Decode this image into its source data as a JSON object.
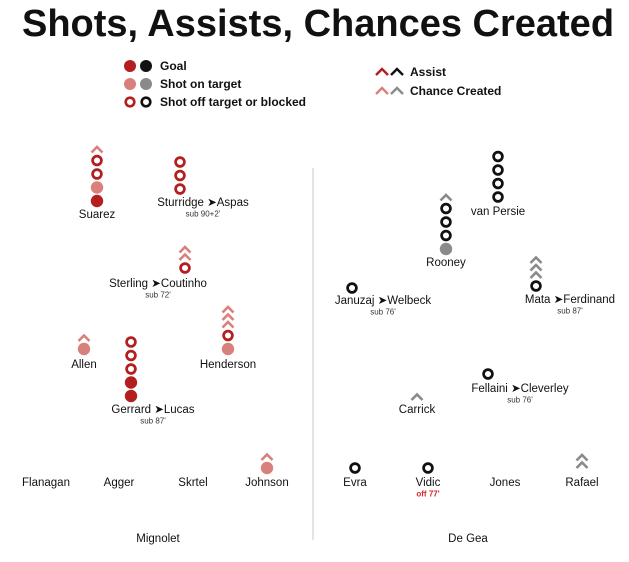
{
  "chart_data": {
    "type": "scatter",
    "title": "Shots, Assists, Chances Created",
    "colors": {
      "home_dark": "#b41e1e",
      "home_light": "#d9807d",
      "away_dark": "#111111",
      "away_light": "#8a8a8a",
      "off_red": "#d92626"
    },
    "legend": {
      "goal": "Goal",
      "on_target": "Shot on target",
      "off_target": "Shot off target or blocked",
      "assist": "Assist",
      "chance": "Chance Created"
    },
    "goalkeepers": {
      "home": "Mignolet",
      "away": "De Gea"
    },
    "teams": [
      {
        "side": "home",
        "players": [
          {
            "key": "suarez",
            "name": "Suarez",
            "sub_in": "",
            "sub_note": "",
            "events": [
              "goal",
              "on_target",
              "off_target",
              "off_target",
              "chance"
            ]
          },
          {
            "key": "sturridge",
            "name": "Sturridge",
            "sub_in": "Aspas",
            "sub_note": "sub 90+2'",
            "events": [
              "off_target",
              "off_target",
              "off_target"
            ]
          },
          {
            "key": "sterling",
            "name": "Sterling",
            "sub_in": "Coutinho",
            "sub_note": "sub 72'",
            "events": [
              "off_target",
              "chance",
              "chance"
            ]
          },
          {
            "key": "allen",
            "name": "Allen",
            "sub_in": "",
            "sub_note": "",
            "events": [
              "on_target",
              "chance"
            ]
          },
          {
            "key": "henderson",
            "name": "Henderson",
            "sub_in": "",
            "sub_note": "",
            "events": [
              "on_target",
              "off_target",
              "chance",
              "chance",
              "chance"
            ]
          },
          {
            "key": "gerrard",
            "name": "Gerrard",
            "sub_in": "Lucas",
            "sub_note": "sub 87'",
            "events": [
              "goal",
              "goal",
              "off_target",
              "off_target",
              "off_target"
            ]
          },
          {
            "key": "flanagan",
            "name": "Flanagan",
            "sub_in": "",
            "sub_note": "",
            "events": []
          },
          {
            "key": "agger",
            "name": "Agger",
            "sub_in": "",
            "sub_note": "",
            "events": []
          },
          {
            "key": "skrtel",
            "name": "Skrtel",
            "sub_in": "",
            "sub_note": "",
            "events": []
          },
          {
            "key": "johnson",
            "name": "Johnson",
            "sub_in": "",
            "sub_note": "",
            "events": [
              "on_target",
              "chance"
            ]
          }
        ]
      },
      {
        "side": "away",
        "players": [
          {
            "key": "vanpersie",
            "name": "van Persie",
            "sub_in": "",
            "sub_note": "",
            "events": [
              "off_target",
              "off_target",
              "off_target",
              "off_target"
            ]
          },
          {
            "key": "rooney",
            "name": "Rooney",
            "sub_in": "",
            "sub_note": "",
            "events": [
              "on_target",
              "off_target",
              "off_target",
              "off_target",
              "chance"
            ]
          },
          {
            "key": "januzaj",
            "name": "Januzaj",
            "sub_in": "Welbeck",
            "sub_note": "sub 76'",
            "events": [
              "off_target"
            ]
          },
          {
            "key": "mata",
            "name": "Mata",
            "sub_in": "Ferdinand",
            "sub_note": "sub 87'",
            "events": [
              "off_target",
              "chance",
              "chance",
              "chance"
            ]
          },
          {
            "key": "fellaini",
            "name": "Fellaini",
            "sub_in": "Cleverley",
            "sub_note": "sub 76'",
            "events": [
              "off_target"
            ]
          },
          {
            "key": "carrick",
            "name": "Carrick",
            "sub_in": "",
            "sub_note": "",
            "events": [
              "chance"
            ]
          },
          {
            "key": "evra",
            "name": "Evra",
            "sub_in": "",
            "sub_note": "",
            "events": [
              "off_target"
            ]
          },
          {
            "key": "vidic",
            "name": "Vidic",
            "sub_in": "",
            "sub_note": "off 77'",
            "events": [
              "off_target"
            ]
          },
          {
            "key": "jones",
            "name": "Jones",
            "sub_in": "",
            "sub_note": "",
            "events": []
          },
          {
            "key": "rafael",
            "name": "Rafael",
            "sub_in": "",
            "sub_note": "",
            "events": [
              "chance",
              "chance"
            ]
          }
        ]
      }
    ]
  }
}
